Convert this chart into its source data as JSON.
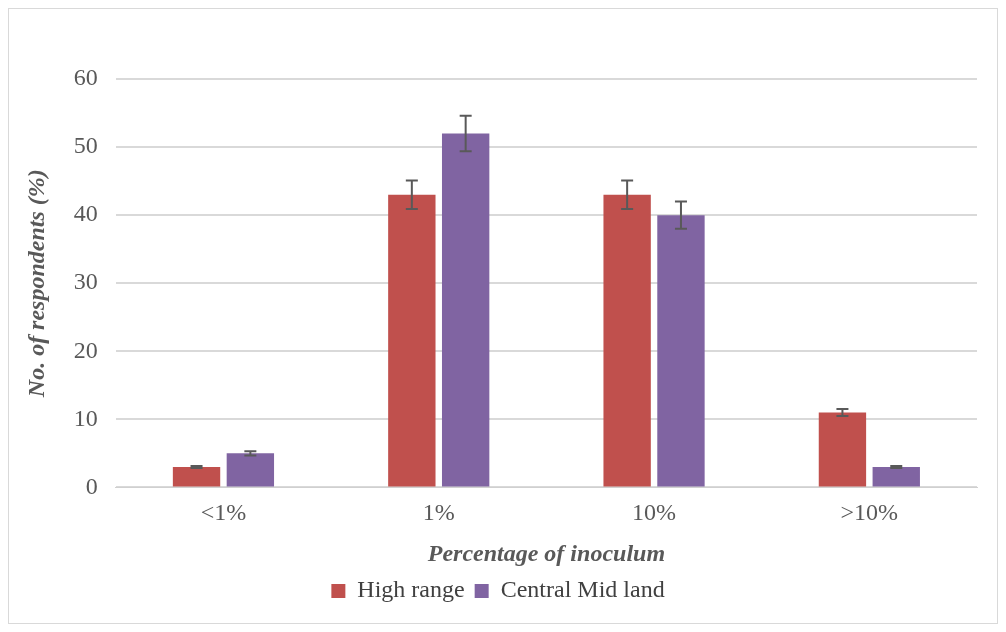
{
  "chart_data": {
    "type": "bar",
    "xlabel": "Percentage of inoculum",
    "ylabel": "No. of respondents (%)",
    "categories": [
      "<1%",
      "1%",
      "10%",
      ">10%"
    ],
    "series": [
      {
        "name": "High range",
        "color": "#c0504d",
        "values": [
          3,
          43,
          43,
          11
        ],
        "errors": [
          0.15,
          2.1,
          2.1,
          0.5
        ]
      },
      {
        "name": "Central Mid land",
        "color": "#8064a2",
        "values": [
          5,
          52,
          40,
          3
        ],
        "errors": [
          0.3,
          2.6,
          2,
          0.15
        ]
      }
    ],
    "ylim": [
      0,
      60
    ],
    "yticks": [
      0,
      10,
      20,
      30,
      40,
      50,
      60
    ],
    "grid": "y",
    "legend": "bottom"
  }
}
